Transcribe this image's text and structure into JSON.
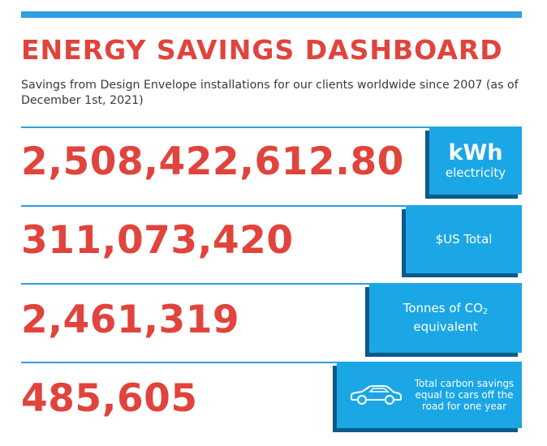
{
  "header": {
    "title": "ENERGY SAVINGS DASHBOARD",
    "subtitle": "Savings from Design Envelope installations for our clients worldwide since 2007 (as of December 1st, 2021)"
  },
  "stats": [
    {
      "value": "2,508,422,612.80",
      "unit_big": "kWh",
      "unit_small": "electricity"
    },
    {
      "value": "311,073,420",
      "label": "$US Total"
    },
    {
      "value": "2,461,319",
      "label_prefix": "Tonnes of CO",
      "label_sub": "2",
      "label_suffix": "equivalent"
    },
    {
      "value": "485,605",
      "label": "Total carbon savings equal to cars off the road for one year",
      "icon": "car-icon"
    }
  ],
  "colors": {
    "accent_blue": "#1ba7e6",
    "rule_blue": "#2f9ee0",
    "shadow_blue": "#0b5a8a",
    "number_red": "#e0443c"
  }
}
